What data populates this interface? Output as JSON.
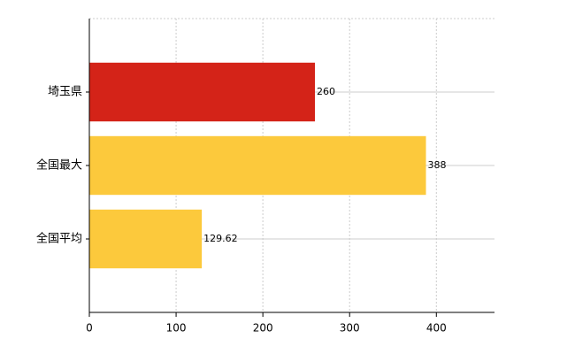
{
  "chart_data": {
    "type": "barh",
    "categories": [
      "埼玉県",
      "全国最大",
      "全国平均"
    ],
    "values": [
      260,
      388,
      129.62
    ],
    "colors": [
      "#d42318",
      "#fcc93c",
      "#fcc93c"
    ],
    "xlim": [
      0,
      467
    ],
    "xticks": [
      0,
      100,
      200,
      300,
      400
    ],
    "grid": true
  }
}
